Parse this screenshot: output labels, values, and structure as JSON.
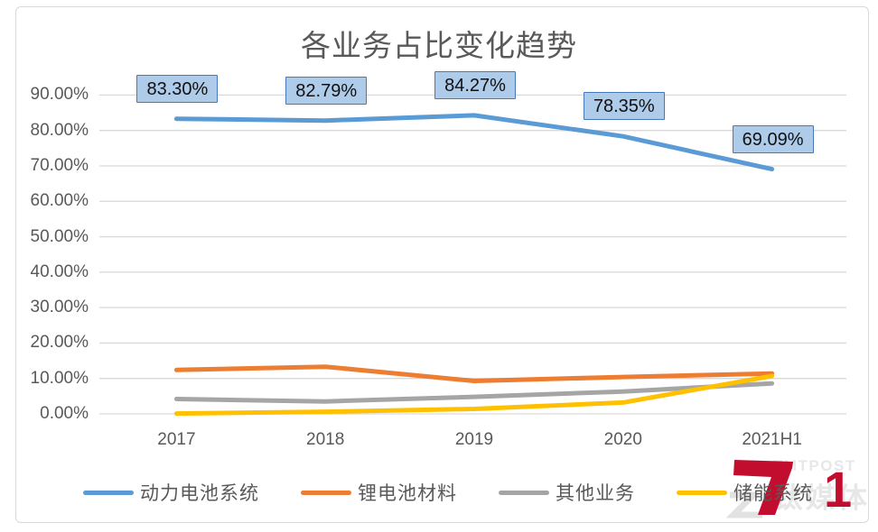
{
  "chart_data": {
    "type": "line",
    "title": "各业务占比变化趋势",
    "categories": [
      "2017",
      "2018",
      "2019",
      "2020",
      "2021H1"
    ],
    "series": [
      {
        "name": "动力电池系统",
        "color": "#5B9BD5",
        "values": [
          83.3,
          82.79,
          84.27,
          78.35,
          69.09
        ],
        "point_labels": [
          "83.30%",
          "82.79%",
          "84.27%",
          "78.35%",
          "69.09%"
        ]
      },
      {
        "name": "锂电池材料",
        "color": "#ED7D31",
        "values": [
          12.4,
          13.3,
          9.3,
          10.4,
          11.4
        ]
      },
      {
        "name": "其他业务",
        "color": "#A5A5A5",
        "values": [
          4.2,
          3.5,
          4.8,
          6.3,
          8.6
        ]
      },
      {
        "name": "储能系统",
        "color": "#FFC000",
        "values": [
          0.1,
          0.6,
          1.4,
          3.2,
          10.7
        ]
      }
    ],
    "xlabel": "",
    "ylabel": "",
    "ylim": [
      0,
      90
    ],
    "ytick_values": [
      90,
      80,
      70,
      60,
      50,
      40,
      30,
      20,
      10,
      0
    ],
    "yticks": [
      "90.00%",
      "80.00%",
      "70.00%",
      "60.00%",
      "50.00%",
      "40.00%",
      "30.00%",
      "20.00%",
      "10.00%",
      "0.00%"
    ],
    "grid": true,
    "gridline_color": "#D9D9D9",
    "legend_position": "bottom",
    "point_label_style": {
      "fill": "#AECBEA",
      "border": "#4779B9",
      "text_color": "#111111"
    }
  },
  "text_color": "#595959",
  "watermark": {
    "brand_en": "TMTPOST",
    "brand_cn": "钛媒体",
    "digit": "1",
    "red": "#C30D2E",
    "light_gray": "#E7E7E7"
  }
}
